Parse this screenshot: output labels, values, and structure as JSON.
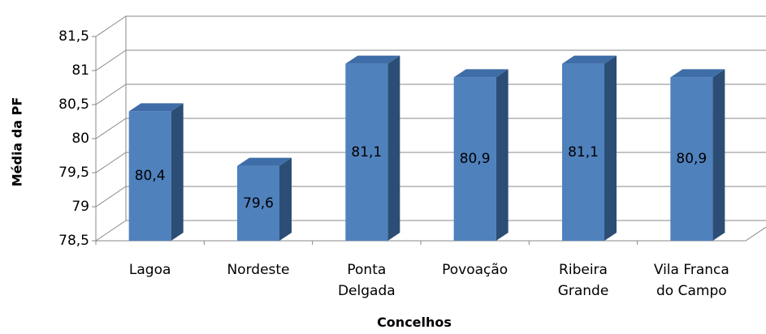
{
  "chart_data": {
    "type": "bar3d",
    "y_label": "Média da PF",
    "x_label": "Concelhos",
    "categories": [
      "Lagoa",
      "Nordeste",
      "Ponta Delgada",
      "Povoação",
      "Ribeira Grande",
      "Vila Franca do Campo"
    ],
    "values": [
      80.4,
      79.6,
      81.1,
      80.9,
      81.1,
      80.9
    ],
    "value_labels": [
      "80,4",
      "79,6",
      "81,1",
      "80,9",
      "81,1",
      "80,9"
    ],
    "color": "#4f81bd",
    "ylim": [
      78.5,
      81.5
    ],
    "yticks": [
      {
        "value": 78.5,
        "label": "78,5"
      },
      79,
      {
        "value": 79.5,
        "label": "79,5"
      },
      80,
      {
        "value": 80.5,
        "label": "80,5"
      },
      81,
      {
        "value": 81.5,
        "label": "81,5"
      }
    ],
    "grid": true
  }
}
